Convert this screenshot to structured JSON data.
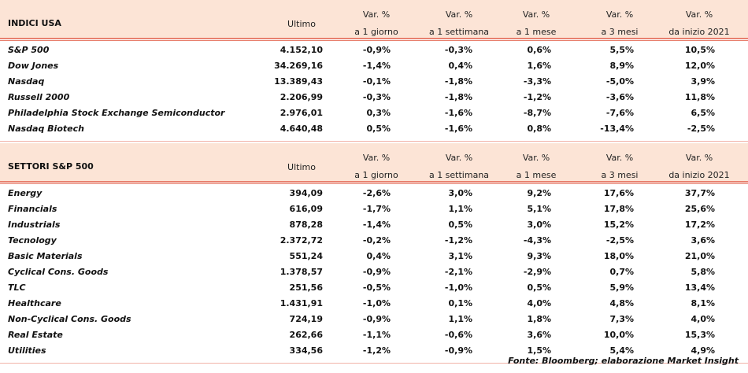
{
  "sections": [
    {
      "title": "INDICI USA",
      "columns": [
        [
          "Ultimo"
        ],
        [
          "Var. %",
          "a 1 giorno"
        ],
        [
          "Var. %",
          "a 1 settimana"
        ],
        [
          "Var. %",
          "a 1 mese"
        ],
        [
          "Var. %",
          "a 3 mesi"
        ],
        [
          "Var. %",
          "da inizio 2021"
        ]
      ],
      "rows": [
        [
          "S&P 500",
          "4.152,10",
          "-0,9%",
          "-0,3%",
          "0,6%",
          "5,5%",
          "10,5%"
        ],
        [
          "Dow Jones",
          "34.269,16",
          "-1,4%",
          "0,4%",
          "1,6%",
          "8,9%",
          "12,0%"
        ],
        [
          "Nasdaq",
          "13.389,43",
          "-0,1%",
          "-1,8%",
          "-3,3%",
          "-5,0%",
          "3,9%"
        ],
        [
          "Russell 2000",
          "2.206,99",
          "-0,3%",
          "-1,8%",
          "-1,2%",
          "-3,6%",
          "11,8%"
        ],
        [
          "Philadelphia Stock Exchange Semiconductor",
          "2.976,01",
          "0,3%",
          "-1,6%",
          "-8,7%",
          "-7,6%",
          "6,5%"
        ],
        [
          "Nasdaq Biotech",
          "4.640,48",
          "0,5%",
          "-1,6%",
          "0,8%",
          "-13,4%",
          "-2,5%"
        ]
      ]
    },
    {
      "title": "SETTORI S&P 500",
      "columns": [
        [
          "Ultimo"
        ],
        [
          "Var. %",
          "a 1 giorno"
        ],
        [
          "Var. %",
          "a 1 settimana"
        ],
        [
          "Var. %",
          "a 1 mese"
        ],
        [
          "Var. %",
          "a 3 mesi"
        ],
        [
          "Var. %",
          "da inizio 2021"
        ]
      ],
      "rows": [
        [
          "Energy",
          "394,09",
          "-2,6%",
          "3,0%",
          "9,2%",
          "17,6%",
          "37,7%"
        ],
        [
          "Financials",
          "616,09",
          "-1,7%",
          "1,1%",
          "5,1%",
          "17,8%",
          "25,6%"
        ],
        [
          "Industrials",
          "878,28",
          "-1,4%",
          "0,5%",
          "3,0%",
          "15,2%",
          "17,2%"
        ],
        [
          "Tecnology",
          "2.372,72",
          "-0,2%",
          "-1,2%",
          "-4,3%",
          "-2,5%",
          "3,6%"
        ],
        [
          "Basic Materials",
          "551,24",
          "0,4%",
          "3,1%",
          "9,3%",
          "18,0%",
          "21,0%"
        ],
        [
          "Cyclical Cons. Goods",
          "1.378,57",
          "-0,9%",
          "-2,1%",
          "-2,9%",
          "0,7%",
          "5,8%"
        ],
        [
          "TLC",
          "251,56",
          "-0,5%",
          "-1,0%",
          "0,5%",
          "5,9%",
          "13,4%"
        ],
        [
          "Healthcare",
          "1.431,91",
          "-1,0%",
          "0,1%",
          "4,0%",
          "4,8%",
          "8,1%"
        ],
        [
          "Non-Cyclical Cons. Goods",
          "724,19",
          "-0,9%",
          "1,1%",
          "1,8%",
          "7,3%",
          "4,0%"
        ],
        [
          "Real Estate",
          "262,66",
          "-1,1%",
          "-0,6%",
          "3,6%",
          "10,0%",
          "15,3%"
        ],
        [
          "Utilities",
          "334,56",
          "-1,2%",
          "-0,9%",
          "1,5%",
          "5,4%",
          "4,9%"
        ]
      ]
    }
  ],
  "source": "Fonte: Bloomberg; elaborazione Market Insight"
}
